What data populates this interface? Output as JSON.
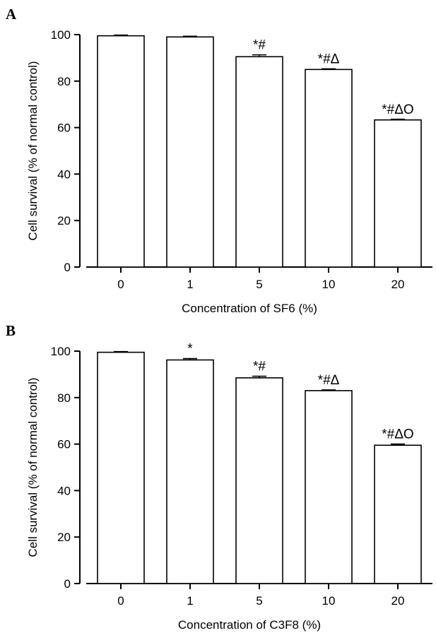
{
  "panels": [
    {
      "letter": "A"
    },
    {
      "letter": "B"
    }
  ],
  "chart_data": [
    {
      "type": "bar",
      "title": "",
      "xlabel": "Concentration of SF6 (%)",
      "ylabel": "Cell survival (% of normal control)",
      "ylim": [
        0,
        100
      ],
      "yticks": [
        0,
        20,
        40,
        60,
        80,
        100
      ],
      "categories": [
        "0",
        "1",
        "5",
        "10",
        "20"
      ],
      "values": [
        99.5,
        99.0,
        90.5,
        85.0,
        63.3
      ],
      "errors": [
        0.3,
        0.3,
        0.8,
        0.3,
        0.3
      ],
      "annotations": [
        "",
        "",
        "*#",
        "*#Δ",
        "*#ΔO"
      ],
      "bar_fill": "#ffffff",
      "bar_stroke": "#000000"
    },
    {
      "type": "bar",
      "title": "",
      "xlabel": "Concentration of C3F8 (%)",
      "ylabel": "Cell survival (% of normal control)",
      "ylim": [
        0,
        100
      ],
      "yticks": [
        0,
        20,
        40,
        60,
        80,
        100
      ],
      "categories": [
        "0",
        "1",
        "5",
        "10",
        "20"
      ],
      "values": [
        99.5,
        96.2,
        88.5,
        83.0,
        59.5
      ],
      "errors": [
        0.3,
        0.6,
        0.7,
        0.3,
        0.5
      ],
      "annotations": [
        "",
        "*",
        "*#",
        "*#Δ",
        "*#ΔO"
      ],
      "bar_fill": "#ffffff",
      "bar_stroke": "#000000"
    }
  ]
}
